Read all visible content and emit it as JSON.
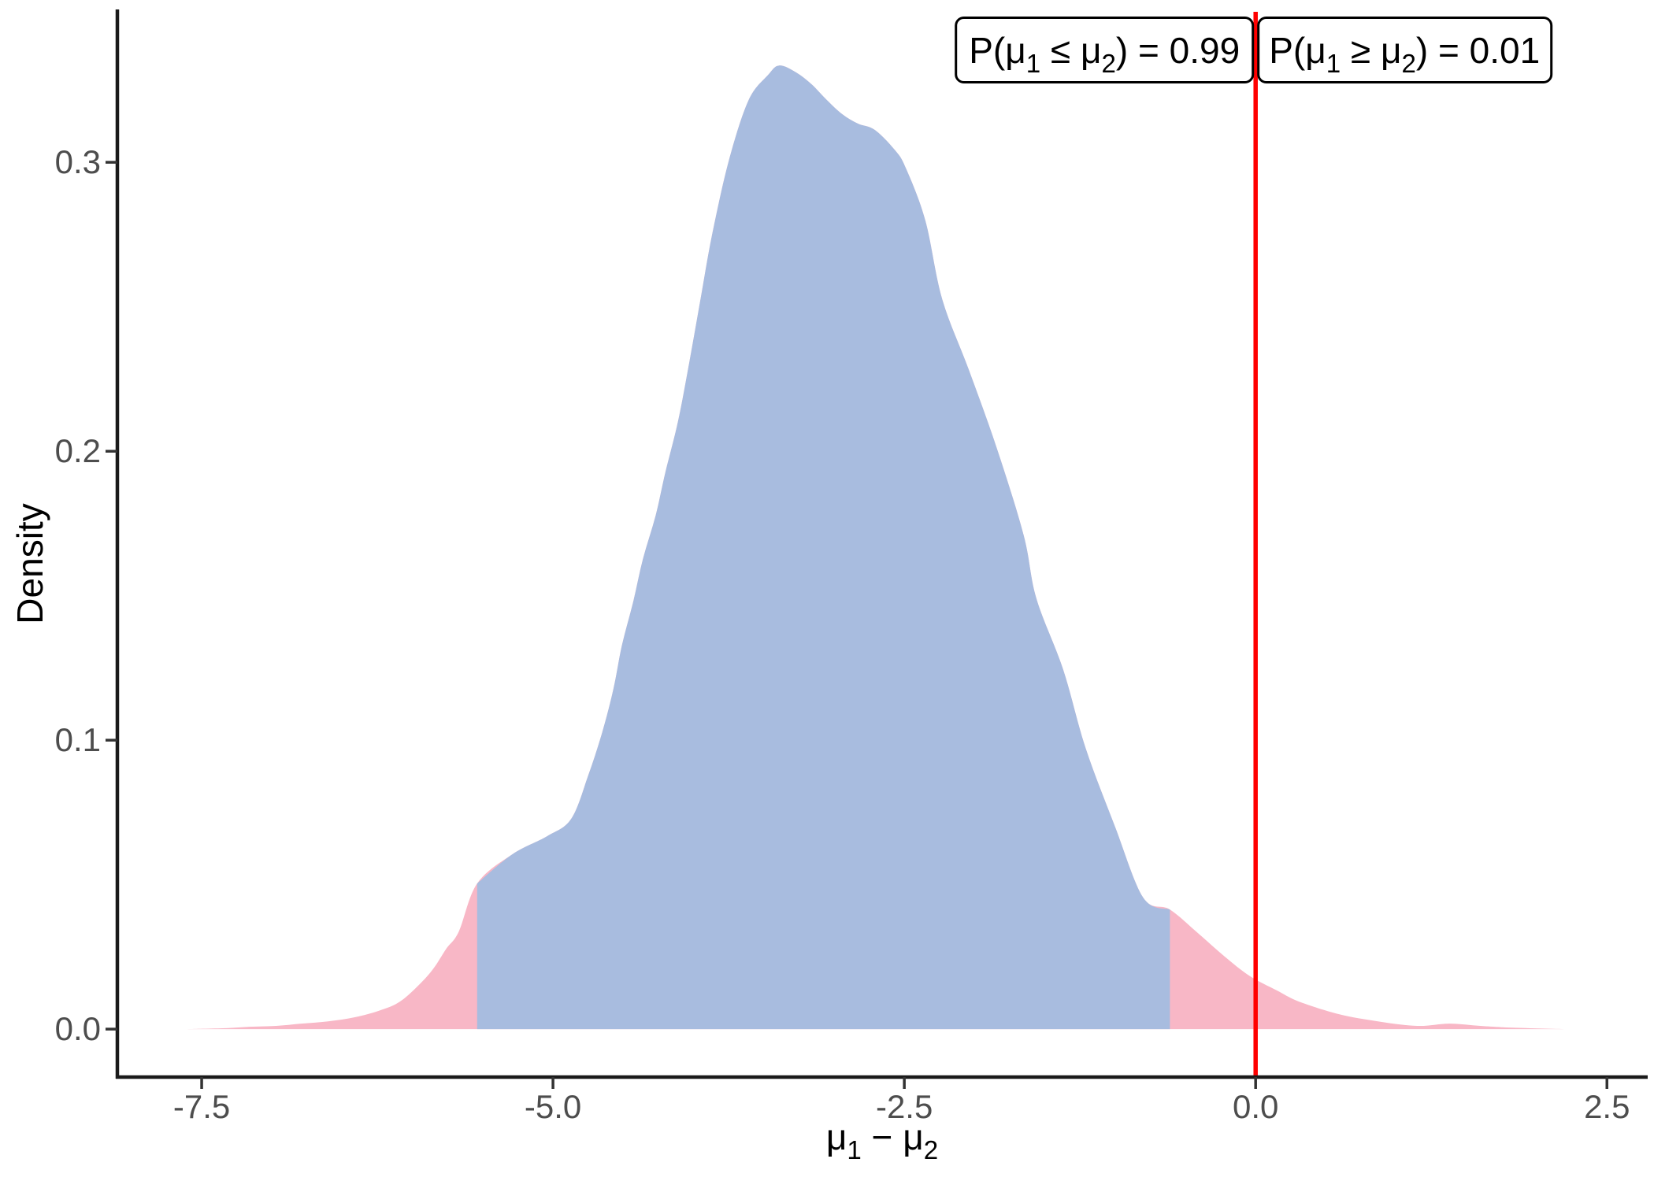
{
  "figure": {
    "background": "#FFFFFF",
    "kind": "posterior density plot"
  },
  "chart_data": {
    "type": "area",
    "title": "",
    "xlabel": "μ₁ − μ₂",
    "ylabel": "Density",
    "x_ticks": [
      -7.5,
      -5.0,
      -2.5,
      0.0,
      2.5
    ],
    "x_tick_labels": [
      "-7.5",
      "-5.0",
      "-2.5",
      "0.0",
      "2.5"
    ],
    "y_ticks": [
      0.0,
      0.1,
      0.2,
      0.3
    ],
    "y_tick_labels": [
      "0.0",
      "0.1",
      "0.2",
      "0.3"
    ],
    "xlim": [
      -8.1,
      2.79
    ],
    "ylim": [
      -0.0166,
      0.3529
    ],
    "grid": "off",
    "legend": "none",
    "vline_x": 0,
    "credible_interval": [
      -5.54,
      -0.61
    ],
    "peak": {
      "x": -3.39,
      "density": 0.3335
    },
    "annotations": [
      {
        "id": "left",
        "text": "P(μ₁ ≤ μ₂) = 0.99",
        "probability": 0.99
      },
      {
        "id": "right",
        "text": "P(μ₁ ≥ μ₂) = 0.01",
        "probability": 0.01
      }
    ],
    "colors": {
      "interval_fill": "#A8BCDF",
      "tail_fill": "#F8B7C6",
      "vline": "#FF0000",
      "axis": "#1A1A1A",
      "tick": "#333333",
      "tick_label": "#4D4D4D",
      "annotation_border": "#000000",
      "annotation_fill": "#FFFFFF"
    },
    "curve": [
      [
        -7.61,
        0.0
      ],
      [
        -7.35,
        0.0003
      ],
      [
        -7.16,
        0.0008
      ],
      [
        -6.97,
        0.0011
      ],
      [
        -6.79,
        0.0019
      ],
      [
        -6.6,
        0.0027
      ],
      [
        -6.41,
        0.0041
      ],
      [
        -6.23,
        0.0065
      ],
      [
        -6.09,
        0.0095
      ],
      [
        -5.95,
        0.0155
      ],
      [
        -5.85,
        0.021
      ],
      [
        -5.76,
        0.0278
      ],
      [
        -5.67,
        0.0338
      ],
      [
        -5.54,
        0.0504
      ],
      [
        -5.29,
        0.0605
      ],
      [
        -5.04,
        0.0668
      ],
      [
        -4.87,
        0.0728
      ],
      [
        -4.75,
        0.0877
      ],
      [
        -4.65,
        0.1027
      ],
      [
        -4.57,
        0.1177
      ],
      [
        -4.51,
        0.1327
      ],
      [
        -4.43,
        0.1477
      ],
      [
        -4.36,
        0.1627
      ],
      [
        -4.27,
        0.1777
      ],
      [
        -4.2,
        0.1927
      ],
      [
        -4.11,
        0.2104
      ],
      [
        -4.03,
        0.2308
      ],
      [
        -3.95,
        0.2526
      ],
      [
        -3.87,
        0.2744
      ],
      [
        -3.75,
        0.3003
      ],
      [
        -3.61,
        0.3213
      ],
      [
        -3.47,
        0.3302
      ],
      [
        -3.39,
        0.3335
      ],
      [
        -3.27,
        0.3311
      ],
      [
        -3.16,
        0.327
      ],
      [
        -3.05,
        0.3215
      ],
      [
        -2.94,
        0.3166
      ],
      [
        -2.83,
        0.3134
      ],
      [
        -2.71,
        0.3112
      ],
      [
        -2.57,
        0.3044
      ],
      [
        -2.49,
        0.2981
      ],
      [
        -2.35,
        0.2798
      ],
      [
        -2.23,
        0.2526
      ],
      [
        -2.04,
        0.2281
      ],
      [
        -1.84,
        0.2008
      ],
      [
        -1.65,
        0.1708
      ],
      [
        -1.56,
        0.149
      ],
      [
        -1.37,
        0.1245
      ],
      [
        -1.21,
        0.0973
      ],
      [
        -1.0,
        0.07
      ],
      [
        -0.8,
        0.0455
      ],
      [
        -0.61,
        0.0414
      ],
      [
        -0.41,
        0.0332
      ],
      [
        -0.22,
        0.0251
      ],
      [
        -0.04,
        0.0183
      ],
      [
        0.15,
        0.0134
      ],
      [
        0.31,
        0.0095
      ],
      [
        0.59,
        0.0052
      ],
      [
        0.87,
        0.0027
      ],
      [
        1.15,
        0.0011
      ],
      [
        1.38,
        0.0019
      ],
      [
        1.6,
        0.0011
      ],
      [
        1.83,
        0.0005
      ],
      [
        2.21,
        0.0
      ]
    ]
  }
}
